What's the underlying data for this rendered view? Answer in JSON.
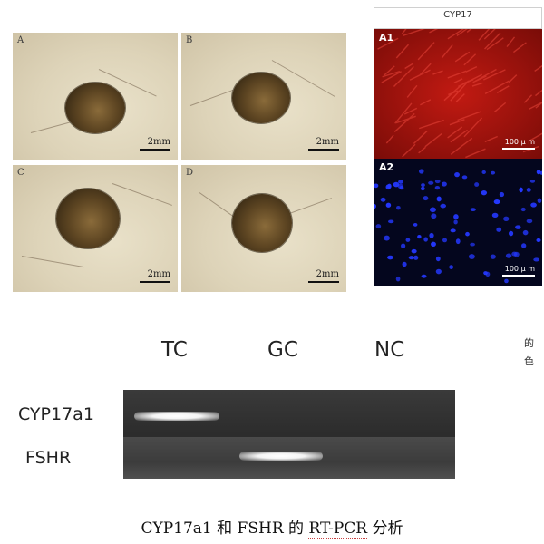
{
  "panels": [
    {
      "label": "A",
      "scale": "2mm"
    },
    {
      "label": "B",
      "scale": "2mm"
    },
    {
      "label": "C",
      "scale": "2mm"
    },
    {
      "label": "D",
      "scale": "2mm"
    }
  ],
  "fluorescence": {
    "title": "CYP17",
    "panels": [
      {
        "label": "A1",
        "scale": "100 μ m",
        "color": "#b01010"
      },
      {
        "label": "A2",
        "scale": "100 μ m",
        "color": "#1020c0"
      }
    ]
  },
  "gel": {
    "lanes": [
      "TC",
      "GC",
      "NC"
    ],
    "genes": [
      "CYP17a1",
      "FSHR"
    ]
  },
  "side_text": [
    "的",
    "色"
  ],
  "caption": {
    "prefix": "CYP17a1 和 FSHR 的 ",
    "underlined": "RT-PCR",
    "suffix": " 分析"
  }
}
